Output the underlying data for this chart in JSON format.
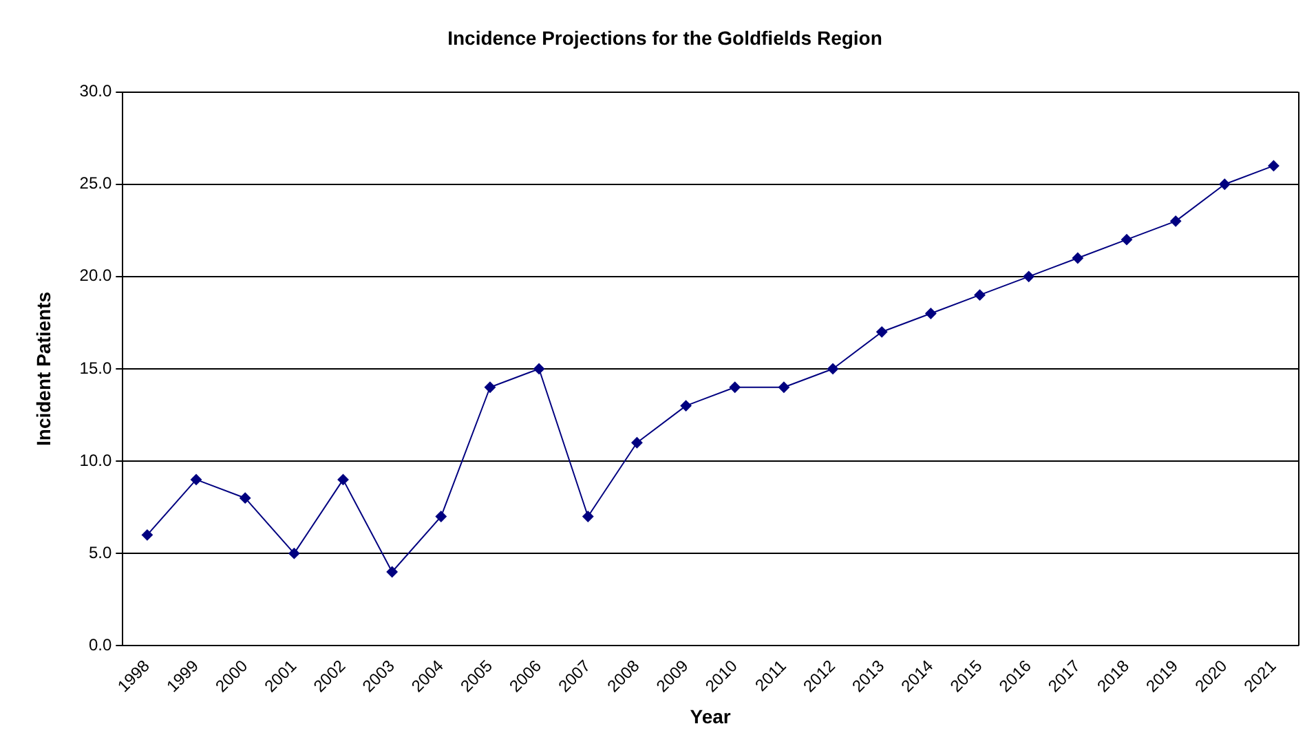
{
  "chart_data": {
    "type": "line",
    "title": "Incidence Projections for the Goldfields Region",
    "xlabel": "Year",
    "ylabel": "Incident Patients",
    "categories": [
      "1998",
      "1999",
      "2000",
      "2001",
      "2002",
      "2003",
      "2004",
      "2005",
      "2006",
      "2007",
      "2008",
      "2009",
      "2010",
      "2011",
      "2012",
      "2013",
      "2014",
      "2015",
      "2016",
      "2017",
      "2018",
      "2019",
      "2020",
      "2021"
    ],
    "series": [
      {
        "color": "#000080",
        "values": [
          6,
          9,
          8,
          5,
          9,
          4,
          7,
          14,
          15,
          7,
          11,
          13,
          14,
          14,
          15,
          17,
          18,
          19,
          20,
          21,
          22,
          23,
          25,
          26
        ]
      }
    ],
    "ylim": [
      0,
      30
    ],
    "yticks": [
      {
        "value": 0,
        "label": "0.0"
      },
      {
        "value": 5,
        "label": "5.0"
      },
      {
        "value": 10,
        "label": "10.0"
      },
      {
        "value": 15,
        "label": "15.0"
      },
      {
        "value": 20,
        "label": "20.0"
      },
      {
        "value": 25,
        "label": "25.0"
      },
      {
        "value": 30,
        "label": "30.0"
      }
    ],
    "grid": "y",
    "legend": false,
    "marker": "diamond",
    "line_style": "solid"
  }
}
